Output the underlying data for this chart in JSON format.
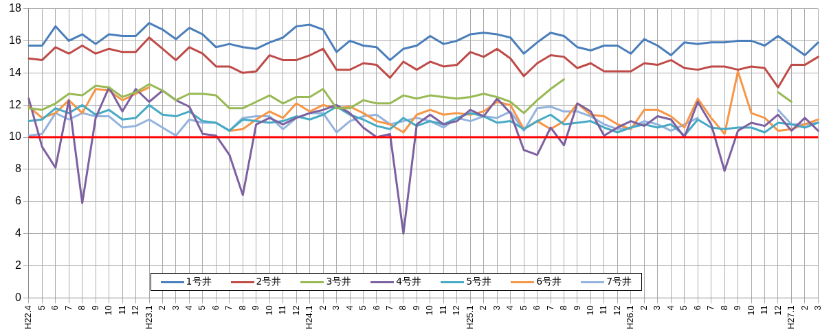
{
  "chart_data": {
    "type": "line",
    "categories": [
      "H22.4",
      "5",
      "6",
      "7",
      "8",
      "9",
      "10",
      "11",
      "12",
      "H23.1",
      "2",
      "3",
      "4",
      "5",
      "6",
      "7",
      "8",
      "9",
      "10",
      "11",
      "12",
      "H24.1",
      "2",
      "3",
      "4",
      "5",
      "6",
      "7",
      "8",
      "9",
      "10",
      "11",
      "12",
      "H25.1",
      "2",
      "3",
      "4",
      "5",
      "6",
      "7",
      "8",
      "9",
      "10",
      "11",
      "12",
      "H26.1",
      "2",
      "3",
      "4",
      "5",
      "6",
      "7",
      "8",
      "9",
      "10",
      "11",
      "12",
      "H27.1",
      "2",
      "3"
    ],
    "series": [
      {
        "name": "1号井",
        "color": "#4a7ebb",
        "values": [
          15.7,
          15.7,
          16.9,
          16.0,
          16.4,
          15.8,
          16.4,
          16.3,
          16.3,
          17.1,
          16.7,
          16.1,
          16.8,
          16.4,
          15.6,
          15.8,
          15.6,
          15.5,
          15.9,
          16.2,
          16.9,
          17.0,
          16.7,
          15.3,
          16.0,
          15.7,
          15.6,
          14.8,
          15.5,
          15.7,
          16.3,
          15.8,
          16.0,
          16.4,
          16.5,
          16.4,
          16.2,
          15.2,
          15.9,
          16.5,
          16.3,
          15.6,
          15.4,
          15.7,
          15.7,
          15.2,
          16.1,
          15.7,
          15.1,
          15.9,
          15.8,
          15.9,
          15.9,
          16.0,
          16.0,
          15.7,
          16.3,
          15.7,
          15.1,
          15.9
        ]
      },
      {
        "name": "2号井",
        "color": "#be4b48",
        "values": [
          14.9,
          14.8,
          15.6,
          15.2,
          15.7,
          15.2,
          15.5,
          15.3,
          15.3,
          16.2,
          15.5,
          14.8,
          15.6,
          15.2,
          14.4,
          14.4,
          14.0,
          14.1,
          15.1,
          14.8,
          14.8,
          15.1,
          15.5,
          14.2,
          14.2,
          14.6,
          14.5,
          13.7,
          14.7,
          14.2,
          14.7,
          14.4,
          14.5,
          15.3,
          15.0,
          15.5,
          14.9,
          13.8,
          14.6,
          15.1,
          15.0,
          14.3,
          14.6,
          14.1,
          14.1,
          14.1,
          14.6,
          14.5,
          14.8,
          14.3,
          14.2,
          14.4,
          14.4,
          14.2,
          14.4,
          14.3,
          13.1,
          14.5,
          14.5,
          15.0
        ]
      },
      {
        "name": "3号井",
        "color": "#98b954",
        "values": [
          11.8,
          11.7,
          12.1,
          12.7,
          12.6,
          13.2,
          13.1,
          12.5,
          12.8,
          13.3,
          12.9,
          12.3,
          12.7,
          12.7,
          12.6,
          11.8,
          11.8,
          12.2,
          12.6,
          12.1,
          12.5,
          12.5,
          13.0,
          11.8,
          11.8,
          12.3,
          12.1,
          12.1,
          12.6,
          12.4,
          12.6,
          12.5,
          12.4,
          12.5,
          12.7,
          12.5,
          12.2,
          11.5,
          12.3,
          13.0,
          13.6,
          null,
          null,
          null,
          null,
          null,
          null,
          null,
          null,
          null,
          null,
          null,
          null,
          null,
          null,
          null,
          12.8,
          12.2,
          null,
          null
        ]
      },
      {
        "name": "4号井",
        "color": "#7d60a0",
        "values": [
          12.4,
          9.4,
          8.1,
          12.3,
          5.9,
          11.2,
          13.1,
          11.6,
          13.0,
          12.2,
          12.9,
          12.3,
          11.9,
          10.2,
          10.1,
          8.9,
          6.4,
          10.8,
          11.2,
          10.8,
          11.2,
          11.5,
          11.7,
          12.0,
          11.5,
          10.6,
          10.0,
          10.2,
          4.0,
          10.8,
          11.4,
          10.8,
          11.0,
          11.7,
          11.3,
          12.4,
          11.5,
          9.2,
          8.9,
          10.6,
          9.5,
          12.1,
          11.6,
          10.1,
          10.6,
          11.0,
          10.7,
          11.3,
          11.1,
          10.0,
          12.2,
          10.8,
          7.9,
          10.4,
          10.9,
          10.7,
          11.4,
          10.4,
          11.2,
          10.4
        ]
      },
      {
        "name": "5号井",
        "color": "#46aac5",
        "values": [
          11.0,
          11.1,
          11.8,
          11.5,
          12.0,
          11.4,
          11.7,
          11.1,
          11.2,
          12.0,
          11.4,
          11.3,
          11.6,
          11.0,
          10.9,
          10.4,
          11.1,
          11.0,
          10.9,
          11.0,
          11.3,
          11.1,
          11.4,
          11.9,
          11.4,
          11.1,
          10.7,
          10.5,
          11.2,
          10.7,
          11.0,
          10.8,
          11.2,
          11.5,
          11.3,
          10.9,
          11.0,
          10.5,
          11.0,
          11.4,
          10.8,
          10.9,
          11.0,
          10.6,
          10.3,
          10.6,
          10.8,
          10.6,
          10.8,
          10.1,
          11.1,
          10.6,
          10.5,
          10.6,
          10.6,
          10.3,
          10.9,
          10.8,
          10.6,
          10.9
        ]
      },
      {
        "name": "6号井",
        "color": "#f79646",
        "values": [
          11.9,
          11.2,
          11.5,
          12.3,
          11.5,
          13.0,
          12.9,
          12.3,
          12.7,
          13.1,
          null,
          null,
          null,
          null,
          null,
          10.4,
          10.5,
          11.1,
          11.6,
          11.2,
          12.1,
          11.6,
          12.0,
          11.8,
          11.9,
          11.5,
          11.0,
          10.8,
          10.3,
          11.4,
          11.7,
          11.4,
          11.5,
          11.4,
          11.6,
          12.2,
          12.0,
          10.5,
          11.0,
          10.5,
          11.0,
          12.1,
          11.4,
          11.3,
          10.8,
          10.5,
          11.7,
          11.7,
          11.3,
          10.6,
          12.4,
          11.2,
          10.2,
          14.1,
          11.5,
          11.2,
          10.4,
          10.5,
          10.8,
          11.1
        ]
      },
      {
        "name": "7号井",
        "color": "#93b3de",
        "values": [
          10.1,
          10.2,
          11.5,
          11.1,
          11.5,
          11.3,
          11.3,
          10.6,
          10.7,
          11.1,
          10.6,
          10.1,
          11.1,
          10.9,
          10.9,
          10.4,
          11.2,
          11.3,
          11.3,
          10.5,
          11.2,
          11.5,
          11.5,
          10.3,
          11.0,
          11.3,
          11.4,
          10.8,
          11.0,
          11.2,
          11.0,
          10.6,
          11.2,
          11.0,
          11.3,
          11.2,
          11.6,
          10.4,
          11.8,
          11.9,
          11.6,
          11.6,
          11.3,
          10.8,
          10.5,
          10.6,
          11.0,
          10.8,
          10.4,
          10.8,
          11.2,
          null,
          null,
          null,
          null,
          null,
          11.7,
          10.8,
          10.8,
          10.9
        ]
      }
    ],
    "ylim": [
      0,
      18
    ],
    "yticks": [
      0,
      2,
      4,
      6,
      8,
      10,
      12,
      14,
      16,
      18
    ],
    "ref_lines": [
      {
        "axis": "y",
        "value": 10,
        "color": "#ff0000"
      }
    ],
    "grid": true,
    "legend": "bottom",
    "line_style": "solid",
    "marker": "none"
  }
}
